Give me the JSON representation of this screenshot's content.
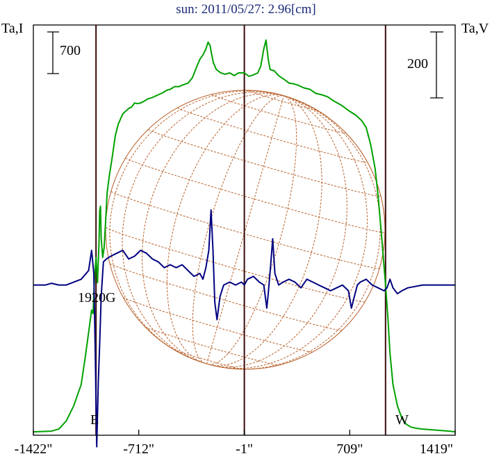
{
  "title": "sun: 2011/05/27: 2.96[cm]",
  "labels": {
    "left_axis": "Ta,I",
    "right_axis": "Ta,V",
    "left_scale": "700",
    "right_scale": "200",
    "east": "E",
    "west": "W",
    "field": "1920G"
  },
  "colors": {
    "intensity": "#00a000",
    "polarization": "#000080",
    "grid": "#b8602a",
    "markers": "#3a0a0a",
    "frame": "#000000"
  },
  "chart_data": {
    "type": "line",
    "title": "sun: 2011/05/27: 2.96[cm]",
    "xlabel": "",
    "x_ticks": [
      "-1422\"",
      "-712\"",
      "-1\"",
      "709\"",
      "1419\""
    ],
    "x_tick_values": [
      -1422,
      -712,
      -1,
      709,
      1419
    ],
    "xlim": [
      -1422,
      1419
    ],
    "vertical_markers": [
      -1000,
      -1,
      950
    ],
    "series": [
      {
        "key": "I",
        "color": "#00a000",
        "x": [
          -1422,
          -1300,
          -1250,
          -1200,
          -1150,
          -1100,
          -1075,
          -1050,
          -1030,
          -1020,
          -1010,
          -1000,
          -990,
          -980,
          -975,
          -970,
          -965,
          -955,
          -945,
          -935,
          -925,
          -910,
          -890,
          -870,
          -850,
          -820,
          -780,
          -760,
          -740,
          -720,
          -700,
          -680,
          -650,
          -620,
          -600,
          -580,
          -550,
          -520,
          -500,
          -470,
          -440,
          -420,
          -380,
          -350,
          -320,
          -300,
          -280,
          -260,
          -245,
          -232,
          -222,
          -210,
          -190,
          -160,
          -130,
          -100,
          -70,
          -40,
          -1,
          30,
          60,
          90,
          110,
          130,
          145,
          160,
          172,
          185,
          200,
          230,
          270,
          300,
          330,
          360,
          400,
          440,
          480,
          520,
          560,
          600,
          650,
          700,
          750,
          790,
          820,
          850,
          880,
          900,
          920,
          935,
          950,
          965,
          980,
          1000,
          1030,
          1060,
          1090,
          1120,
          1160,
          1200,
          1260,
          1320,
          1380,
          1419
        ],
        "y": [
          -50,
          -40,
          -10,
          110,
          330,
          640,
          1000,
          1400,
          1730,
          1680,
          2200,
          2500,
          2130,
          2700,
          3180,
          3250,
          2780,
          2500,
          2650,
          3050,
          3450,
          3700,
          3980,
          4280,
          4450,
          4600,
          4680,
          4700,
          4760,
          4750,
          4760,
          4780,
          4820,
          4840,
          4860,
          4880,
          4910,
          4950,
          4960,
          5000,
          5000,
          5020,
          5050,
          5130,
          5300,
          5400,
          5460,
          5550,
          5650,
          5600,
          5480,
          5350,
          5250,
          5200,
          5180,
          5200,
          5160,
          5200,
          5200,
          5150,
          5170,
          5200,
          5300,
          5550,
          5680,
          5400,
          5250,
          5240,
          5230,
          5160,
          5100,
          5050,
          5040,
          5020,
          4980,
          4960,
          4900,
          4880,
          4850,
          4790,
          4730,
          4650,
          4580,
          4500,
          4400,
          4150,
          3800,
          3400,
          2900,
          2500,
          2100,
          1650,
          1100,
          640,
          330,
          150,
          60,
          20,
          0,
          -10,
          -20,
          -30,
          -40,
          -50
        ],
        "range": [
          -100,
          5900
        ]
      },
      {
        "key": "V",
        "color": "#000080",
        "x": [
          -1422,
          -1380,
          -1340,
          -1300,
          -1250,
          -1200,
          -1150,
          -1100,
          -1050,
          -1030,
          -1015,
          -1005,
          -995,
          -985,
          -975,
          -965,
          -950,
          -930,
          -900,
          -860,
          -820,
          -780,
          -740,
          -700,
          -660,
          -620,
          -580,
          -540,
          -500,
          -460,
          -420,
          -380,
          -340,
          -300,
          -280,
          -260,
          -240,
          -225,
          -212,
          -200,
          -185,
          -165,
          -140,
          -100,
          -60,
          -20,
          -1,
          20,
          60,
          100,
          130,
          150,
          160,
          175,
          190,
          205,
          230,
          260,
          300,
          340,
          380,
          420,
          460,
          500,
          540,
          580,
          620,
          660,
          700,
          720,
          740,
          760,
          780,
          820,
          860,
          900,
          940,
          960,
          980,
          1000,
          1030,
          1060,
          1100,
          1200,
          1300,
          1380,
          1419
        ],
        "y": [
          0,
          0,
          0,
          3,
          0,
          0,
          5,
          10,
          25,
          60,
          20,
          -120,
          -280,
          -170,
          -100,
          -20,
          40,
          45,
          50,
          55,
          60,
          45,
          50,
          60,
          55,
          45,
          40,
          30,
          35,
          30,
          35,
          25,
          15,
          20,
          10,
          30,
          60,
          130,
          60,
          -30,
          -60,
          -20,
          0,
          5,
          0,
          5,
          0,
          10,
          15,
          5,
          0,
          -40,
          -15,
          30,
          80,
          20,
          0,
          5,
          10,
          5,
          -5,
          10,
          5,
          0,
          -5,
          -10,
          -5,
          0,
          -10,
          -40,
          -20,
          0,
          5,
          10,
          0,
          -5,
          -10,
          -5,
          10,
          -5,
          -15,
          -10,
          -5,
          0,
          0,
          0,
          0
        ],
        "range": [
          -260,
          450
        ]
      }
    ],
    "annotations": [
      "E",
      "W",
      "1920G"
    ],
    "scale_bars": [
      {
        "axis": "left",
        "value": 700
      },
      {
        "axis": "right",
        "value": 200
      }
    ],
    "disk_overlay": {
      "grid": "heliographic",
      "color": "#b8602a"
    }
  }
}
